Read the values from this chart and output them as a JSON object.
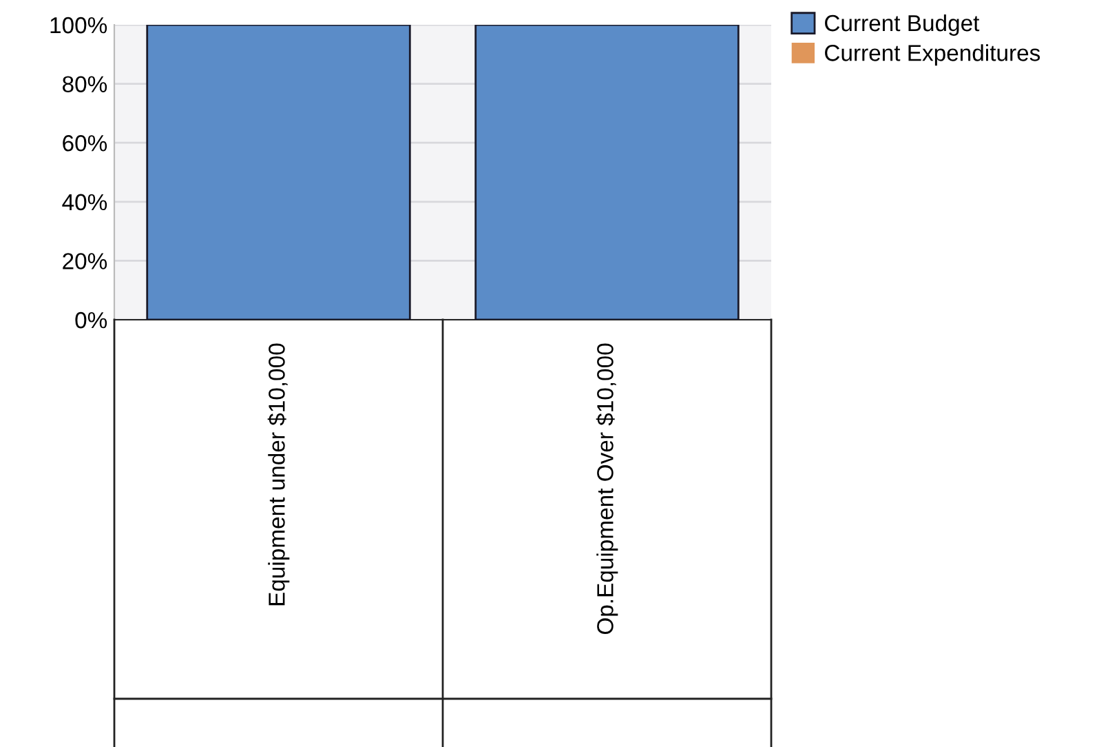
{
  "chart_data": {
    "type": "bar",
    "stacked": true,
    "categories": [
      "Equipment under $10,000",
      "Op.Equipment Over $10,000"
    ],
    "series": [
      {
        "name": "Current Budget",
        "color": "#5b8cc8",
        "values": [
          100,
          100
        ]
      },
      {
        "name": "Current Expenditures",
        "color": "#e0965a",
        "values": [
          0,
          0
        ]
      }
    ],
    "ylim": [
      0,
      100
    ],
    "yticks": [
      {
        "value": 0,
        "label": "0%"
      },
      {
        "value": 20,
        "label": "20%"
      },
      {
        "value": 40,
        "label": "40%"
      },
      {
        "value": 60,
        "label": "60%"
      },
      {
        "value": 80,
        "label": "80%"
      },
      {
        "value": 100,
        "label": "100%"
      }
    ],
    "grid": "y",
    "legend": "top right"
  }
}
